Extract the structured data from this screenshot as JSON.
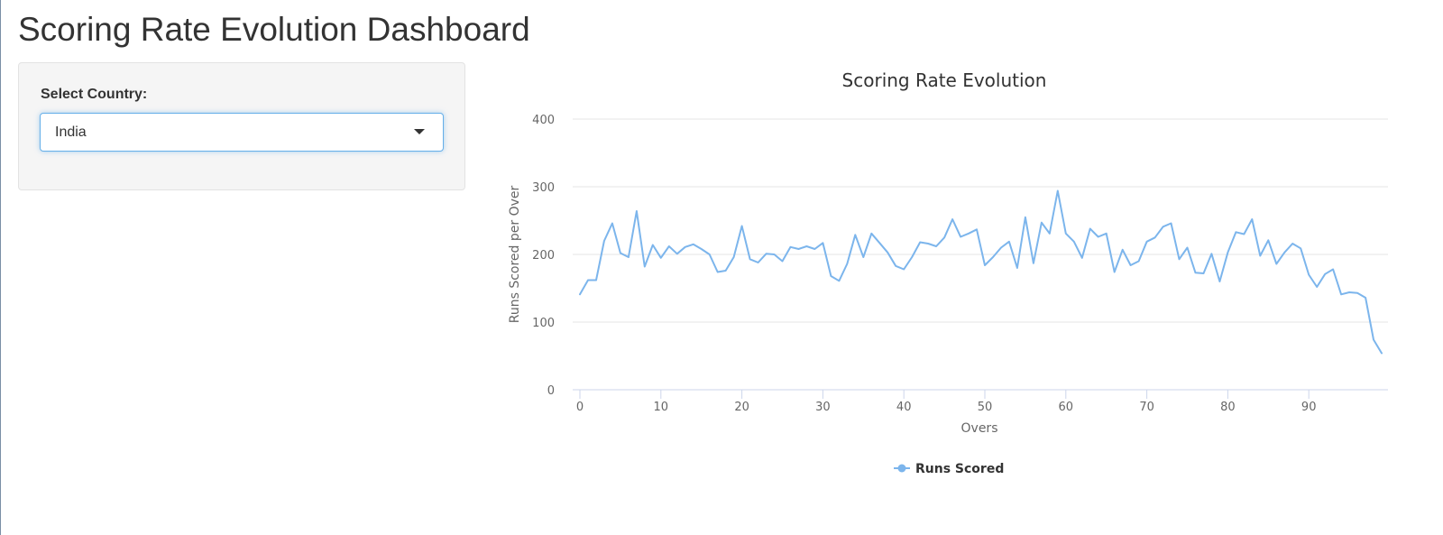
{
  "page": {
    "title": "Scoring Rate Evolution Dashboard"
  },
  "sidebar": {
    "select_label": "Select Country:",
    "selected_country": "India"
  },
  "colors": {
    "line": "#7cb5ec",
    "grid": "#e6e6e6",
    "axis_text": "#666666",
    "title_text": "#333333"
  },
  "chart_data": {
    "type": "line",
    "title": "Scoring Rate Evolution",
    "xlabel": "Overs",
    "ylabel": "Runs Scored per Over",
    "xlim": [
      0,
      99
    ],
    "ylim": [
      0,
      400
    ],
    "xticks": [
      0,
      10,
      20,
      30,
      40,
      50,
      60,
      70,
      80,
      90
    ],
    "yticks": [
      0,
      100,
      200,
      300,
      400
    ],
    "grid": "horizontal",
    "legend": "bottom-center",
    "series": [
      {
        "name": "Runs Scored",
        "x": [
          0,
          1,
          2,
          3,
          4,
          5,
          6,
          7,
          8,
          9,
          10,
          11,
          12,
          13,
          14,
          15,
          16,
          17,
          18,
          19,
          20,
          21,
          22,
          23,
          24,
          25,
          26,
          27,
          28,
          29,
          30,
          31,
          32,
          33,
          34,
          35,
          36,
          37,
          38,
          39,
          40,
          41,
          42,
          43,
          44,
          45,
          46,
          47,
          48,
          49,
          50,
          51,
          52,
          53,
          54,
          55,
          56,
          57,
          58,
          59,
          60,
          61,
          62,
          63,
          64,
          65,
          66,
          67,
          68,
          69,
          70,
          71,
          72,
          73,
          74,
          75,
          76,
          77,
          78,
          79,
          80,
          81,
          82,
          83,
          84,
          85,
          86,
          87,
          88,
          89,
          90,
          91,
          92,
          93,
          94,
          95,
          96,
          97,
          98,
          99
        ],
        "values": [
          141,
          162,
          162,
          220,
          246,
          202,
          196,
          264,
          182,
          214,
          195,
          212,
          201,
          211,
          215,
          208,
          200,
          174,
          176,
          196,
          242,
          193,
          188,
          201,
          200,
          190,
          211,
          208,
          212,
          208,
          217,
          168,
          161,
          186,
          229,
          196,
          231,
          217,
          203,
          183,
          178,
          196,
          218,
          216,
          212,
          225,
          252,
          226,
          231,
          237,
          184,
          196,
          210,
          219,
          180,
          255,
          187,
          247,
          231,
          294,
          231,
          219,
          195,
          238,
          226,
          231,
          174,
          207,
          184,
          190,
          219,
          225,
          241,
          246,
          193,
          210,
          173,
          172,
          201,
          160,
          203,
          233,
          230,
          252,
          198,
          221,
          186,
          203,
          216,
          209,
          170,
          152,
          171,
          178,
          141,
          144,
          143,
          136,
          74,
          54
        ]
      }
    ]
  }
}
